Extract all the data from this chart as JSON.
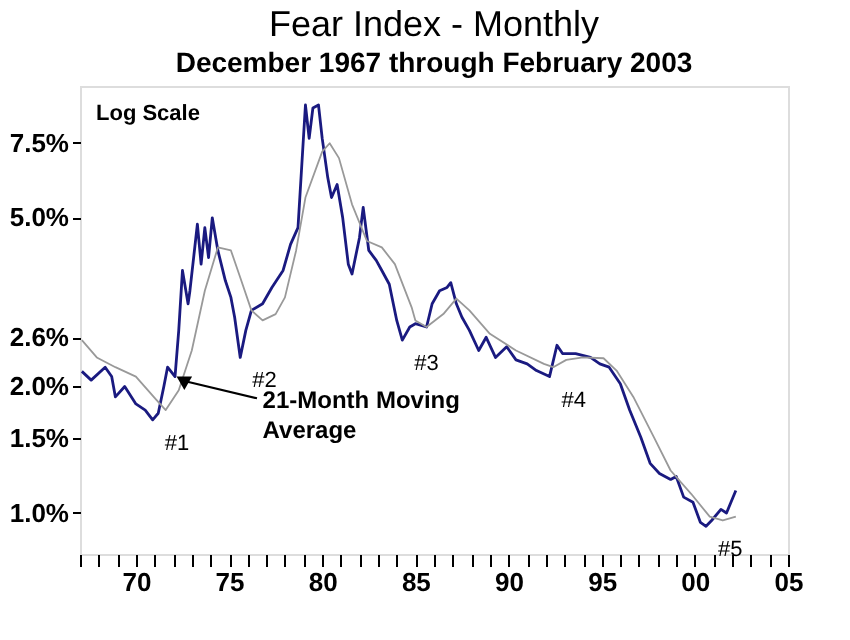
{
  "chart_data": {
    "type": "line",
    "title": "Fear Index - Monthly",
    "subtitle": "December 1967 through February 2003",
    "log": true,
    "grid": false,
    "line_style": "solid",
    "xlim": [
      1967,
      2005
    ],
    "ylim": [
      0.8,
      10.2
    ],
    "xticks": [
      {
        "value": 1967,
        "label": null
      },
      {
        "value": 1968,
        "label": null
      },
      {
        "value": 1969,
        "label": null
      },
      {
        "value": 1970,
        "label": "70"
      },
      {
        "value": 1971,
        "label": null
      },
      {
        "value": 1972,
        "label": null
      },
      {
        "value": 1973,
        "label": null
      },
      {
        "value": 1974,
        "label": null
      },
      {
        "value": 1975,
        "label": "75"
      },
      {
        "value": 1976,
        "label": null
      },
      {
        "value": 1977,
        "label": null
      },
      {
        "value": 1978,
        "label": null
      },
      {
        "value": 1979,
        "label": null
      },
      {
        "value": 1980,
        "label": "80"
      },
      {
        "value": 1981,
        "label": null
      },
      {
        "value": 1982,
        "label": null
      },
      {
        "value": 1983,
        "label": null
      },
      {
        "value": 1984,
        "label": null
      },
      {
        "value": 1985,
        "label": "85"
      },
      {
        "value": 1986,
        "label": null
      },
      {
        "value": 1987,
        "label": null
      },
      {
        "value": 1988,
        "label": null
      },
      {
        "value": 1989,
        "label": null
      },
      {
        "value": 1990,
        "label": "90"
      },
      {
        "value": 1991,
        "label": null
      },
      {
        "value": 1992,
        "label": null
      },
      {
        "value": 1993,
        "label": null
      },
      {
        "value": 1994,
        "label": null
      },
      {
        "value": 1995,
        "label": "95"
      },
      {
        "value": 1996,
        "label": null
      },
      {
        "value": 1997,
        "label": null
      },
      {
        "value": 1998,
        "label": null
      },
      {
        "value": 1999,
        "label": null
      },
      {
        "value": 2000,
        "label": "00"
      },
      {
        "value": 2001,
        "label": null
      },
      {
        "value": 2002,
        "label": null
      },
      {
        "value": 2003,
        "label": null
      },
      {
        "value": 2004,
        "label": null
      },
      {
        "value": 2005,
        "label": "05"
      }
    ],
    "yticks": [
      {
        "value": 1.0,
        "label": "1.0%"
      },
      {
        "value": 1.5,
        "label": "1.5%"
      },
      {
        "value": 2.0,
        "label": "2.0%"
      },
      {
        "value": 2.6,
        "label": "2.6%"
      },
      {
        "value": 5.0,
        "label": "5.0%"
      },
      {
        "value": 7.5,
        "label": "7.5%"
      }
    ],
    "series": [
      {
        "color": "#1a1a80",
        "x": [
          1967.1,
          1967.6,
          1968.35,
          1968.7,
          1968.9,
          1969.4,
          1970.0,
          1970.5,
          1970.9,
          1971.2,
          1971.5,
          1971.7,
          1972.1,
          1972.3,
          1972.5,
          1972.8,
          1972.9,
          1973.3,
          1973.5,
          1973.7,
          1973.9,
          1974.1,
          1974.4,
          1974.8,
          1975.1,
          1975.3,
          1975.6,
          1975.9,
          1976.2,
          1976.8,
          1977.3,
          1977.9,
          1978.3,
          1978.7,
          1979.1,
          1979.3,
          1979.5,
          1979.8,
          1980.0,
          1980.3,
          1980.5,
          1980.8,
          1981.1,
          1981.4,
          1981.6,
          1982.0,
          1982.2,
          1982.5,
          1982.9,
          1983.2,
          1983.6,
          1984.0,
          1984.3,
          1984.7,
          1985.0,
          1985.6,
          1985.9,
          1986.3,
          1986.7,
          1986.9,
          1987.2,
          1987.5,
          1987.9,
          1988.4,
          1988.8,
          1989.3,
          1989.9,
          1990.4,
          1991.0,
          1991.5,
          1992.2,
          1992.6,
          1992.9,
          1993.6,
          1994.4,
          1994.9,
          1995.4,
          1996.0,
          1996.5,
          1997.1,
          1997.6,
          1998.1,
          1998.7,
          1999.0,
          1999.4,
          1999.9,
          2000.3,
          2000.6,
          2000.9,
          2001.4,
          2001.7,
          2002.2
        ],
        "values": [
          2.16,
          2.06,
          2.21,
          2.1,
          1.88,
          1.99,
          1.81,
          1.75,
          1.66,
          1.72,
          1.99,
          2.21,
          2.1,
          2.7,
          3.74,
          3.12,
          3.35,
          4.81,
          3.87,
          4.72,
          4.01,
          4.98,
          4.17,
          3.54,
          3.23,
          2.9,
          2.33,
          2.7,
          3.01,
          3.12,
          3.41,
          3.74,
          4.31,
          4.72,
          9.2,
          7.67,
          9.05,
          9.2,
          7.67,
          6.19,
          5.56,
          5.97,
          4.98,
          3.87,
          3.67,
          4.47,
          5.27,
          4.17,
          3.95,
          3.74,
          3.47,
          2.85,
          2.56,
          2.75,
          2.8,
          2.75,
          3.12,
          3.35,
          3.41,
          3.5,
          3.12,
          2.9,
          2.7,
          2.42,
          2.6,
          2.33,
          2.47,
          2.3,
          2.25,
          2.17,
          2.1,
          2.49,
          2.38,
          2.38,
          2.33,
          2.25,
          2.21,
          2.02,
          1.75,
          1.51,
          1.31,
          1.24,
          1.2,
          1.22,
          1.09,
          1.06,
          0.95,
          0.93,
          0.96,
          1.02,
          1.0,
          1.13
        ]
      },
      {
        "color": "#999999",
        "x": [
          1967.1,
          1967.9,
          1968.9,
          1970.0,
          1971.1,
          1971.6,
          1972.3,
          1973.0,
          1973.7,
          1974.4,
          1975.1,
          1975.6,
          1976.2,
          1976.8,
          1977.5,
          1978.0,
          1978.6,
          1979.1,
          1980.0,
          1980.4,
          1980.9,
          1981.6,
          1982.4,
          1983.2,
          1983.9,
          1984.8,
          1985.0,
          1985.6,
          1986.5,
          1987.2,
          1987.9,
          1989.0,
          1990.4,
          1991.9,
          1992.4,
          1993.1,
          1994.0,
          1995.1,
          1995.8,
          1996.7,
          1997.8,
          1998.7,
          1999.8,
          2000.8,
          2001.5,
          2002.2
        ],
        "values": [
          2.56,
          2.33,
          2.21,
          2.1,
          1.85,
          1.75,
          1.95,
          2.42,
          3.35,
          4.24,
          4.17,
          3.6,
          3.01,
          2.85,
          2.95,
          3.23,
          4.17,
          5.56,
          7.14,
          7.47,
          6.89,
          5.36,
          4.39,
          4.24,
          3.87,
          3.06,
          2.85,
          2.75,
          2.95,
          3.21,
          3.01,
          2.65,
          2.42,
          2.25,
          2.21,
          2.3,
          2.33,
          2.32,
          2.17,
          1.88,
          1.51,
          1.26,
          1.11,
          0.98,
          0.96,
          0.98
        ]
      }
    ],
    "annotations": [
      "Log Scale",
      {
        "text": "21-Month Moving\nAverage",
        "x": 1972.6,
        "y": 2.05
      },
      {
        "text": "#1",
        "x": 1970.9,
        "y": 1.66
      },
      {
        "text": "#2",
        "x": 1975.6,
        "y": 2.33
      },
      {
        "text": "#3",
        "x": 1984.3,
        "y": 2.56
      },
      {
        "text": "#4",
        "x": 1992.2,
        "y": 2.1
      },
      {
        "text": "#5",
        "x": 2000.6,
        "y": 0.93
      }
    ]
  }
}
